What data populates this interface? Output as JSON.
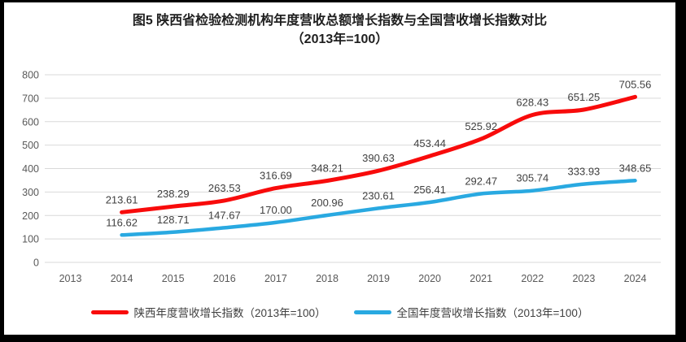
{
  "title": {
    "line1": "图5  陕西省检验检测机构年度营收总额增长指数与全国营收增长指数对比",
    "line2": "（2013年=100）"
  },
  "chart_data": {
    "type": "line",
    "categories": [
      "2013",
      "2014",
      "2015",
      "2016",
      "2017",
      "2018",
      "2019",
      "2020",
      "2021",
      "2022",
      "2023",
      "2024"
    ],
    "series": [
      {
        "name": "陕西年度营收增长指数（2013年=100）",
        "color": "#f80b0b",
        "start_category_index": 1,
        "values": [
          213.61,
          238.29,
          263.53,
          316.69,
          348.21,
          390.63,
          453.44,
          525.92,
          628.43,
          651.25,
          705.56
        ],
        "labels": [
          "213.61",
          "238.29",
          "263.53",
          "316.69",
          "348.21",
          "390.63",
          "453.44",
          "525.92",
          "628.43",
          "651.25",
          "705.56"
        ]
      },
      {
        "name": "全国年度营收增长指数（2013年=100）",
        "color": "#29a9e1",
        "start_category_index": 1,
        "values": [
          116.62,
          128.71,
          147.67,
          170.0,
          200.96,
          230.61,
          256.41,
          292.47,
          305.74,
          333.93,
          348.65
        ],
        "labels": [
          "116.62",
          "128.71",
          "147.67",
          "170.00",
          "200.96",
          "230.61",
          "256.41",
          "292.47",
          "305.74",
          "333.93",
          "348.65"
        ]
      }
    ],
    "ylim": [
      0,
      800
    ],
    "ytick_step": 100,
    "yticks": [
      "0",
      "100",
      "200",
      "300",
      "400",
      "500",
      "600",
      "700",
      "800"
    ],
    "grid": true,
    "legend_position": "bottom",
    "colors": {
      "gridline": "#d9d9d9",
      "axis_text": "#595959",
      "data_label": "#404040",
      "background": "#ffffff",
      "frame": "#000000"
    }
  },
  "legend": {
    "items": [
      {
        "label": "陕西年度营收增长指数（2013年=100）",
        "color": "#f80b0b"
      },
      {
        "label": "全国年度营收增长指数（2013年=100）",
        "color": "#29a9e1"
      }
    ]
  }
}
